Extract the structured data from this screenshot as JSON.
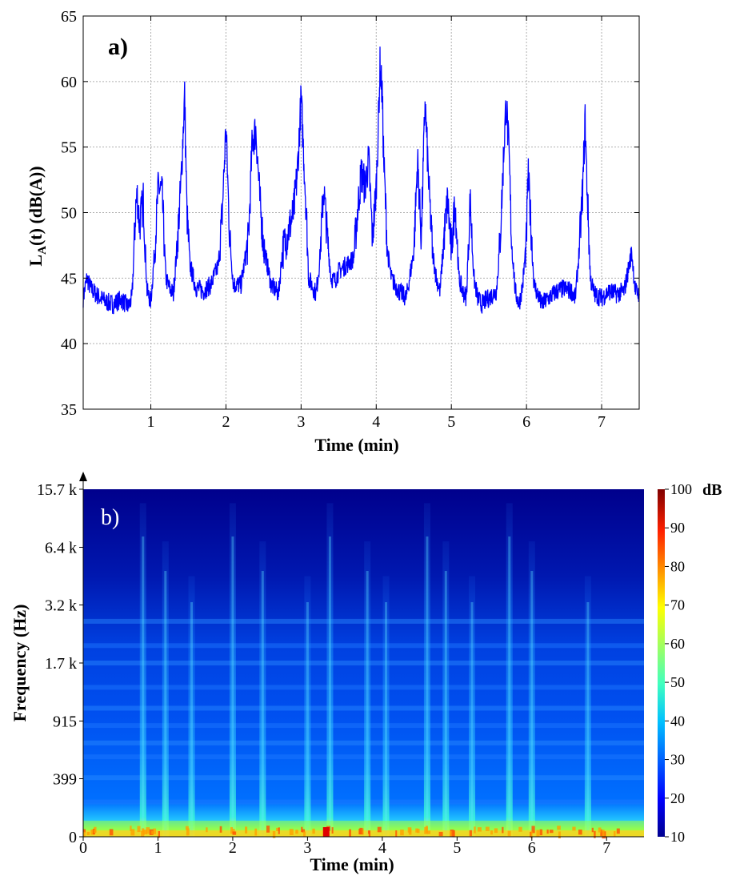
{
  "chart_data": [
    {
      "type": "line",
      "panel_label": "a)",
      "xlabel": "Time (min)",
      "ylabel_main": "L",
      "ylabel_sub": "A",
      "ylabel_rest": "(t) (dB(A))",
      "xlim": [
        0.1,
        7.5
      ],
      "ylim": [
        35,
        65
      ],
      "x_ticks": [
        1,
        2,
        3,
        4,
        5,
        6,
        7
      ],
      "x_tick_labels": [
        "1",
        "2",
        "3",
        "4",
        "5",
        "6",
        "7"
      ],
      "y_ticks": [
        35,
        40,
        45,
        50,
        55,
        60,
        65
      ],
      "y_tick_labels": [
        "35",
        "40",
        "45",
        "50",
        "55",
        "60",
        "65"
      ],
      "grid": true,
      "line_color": "#0000ff",
      "series": [
        {
          "x": [
            0.1,
            0.15,
            0.2,
            0.3,
            0.4,
            0.5,
            0.6,
            0.7,
            0.75,
            0.8,
            0.82,
            0.85,
            0.9,
            0.95,
            1.0,
            1.05,
            1.1,
            1.15,
            1.2,
            1.25,
            1.3,
            1.35,
            1.4,
            1.45,
            1.48,
            1.52,
            1.6,
            1.7,
            1.8,
            1.9,
            1.95,
            2.0,
            2.05,
            2.1,
            2.2,
            2.3,
            2.35,
            2.4,
            2.45,
            2.5,
            2.6,
            2.7,
            2.75,
            2.8,
            2.9,
            2.95,
            3.0,
            3.03,
            3.07,
            3.1,
            3.2,
            3.25,
            3.3,
            3.35,
            3.4,
            3.45,
            3.5,
            3.6,
            3.7,
            3.75,
            3.8,
            3.85,
            3.9,
            3.95,
            4.0,
            4.03,
            4.05,
            4.08,
            4.1,
            4.15,
            4.2,
            4.3,
            4.4,
            4.5,
            4.55,
            4.6,
            4.65,
            4.7,
            4.75,
            4.8,
            4.85,
            4.9,
            4.95,
            5.0,
            5.05,
            5.1,
            5.15,
            5.2,
            5.25,
            5.3,
            5.35,
            5.4,
            5.5,
            5.6,
            5.65,
            5.7,
            5.73,
            5.77,
            5.8,
            5.85,
            5.9,
            5.95,
            6.0,
            6.02,
            6.05,
            6.1,
            6.2,
            6.3,
            6.4,
            6.5,
            6.6,
            6.65,
            6.7,
            6.75,
            6.78,
            6.8,
            6.85,
            6.9,
            7.0,
            7.1,
            7.2,
            7.3,
            7.35,
            7.4,
            7.45,
            7.5
          ],
          "y": [
            43.5,
            45.0,
            44.2,
            43.6,
            43.2,
            43.0,
            43.4,
            42.8,
            43.5,
            50.5,
            51.3,
            49.0,
            51.0,
            44.0,
            43.2,
            47.0,
            52.0,
            51.5,
            45.0,
            44.2,
            43.8,
            47.5,
            52.0,
            59.0,
            50.0,
            46.0,
            44.3,
            44.0,
            44.5,
            46.0,
            50.0,
            56.5,
            48.0,
            44.5,
            44.5,
            48.0,
            55.5,
            56.3,
            51.0,
            47.5,
            44.5,
            43.8,
            47.0,
            48.0,
            50.0,
            53.0,
            58.7,
            55.0,
            50.0,
            45.0,
            43.8,
            46.5,
            52.0,
            48.0,
            45.0,
            44.8,
            45.5,
            46.0,
            46.5,
            50.0,
            53.0,
            52.0,
            54.0,
            48.0,
            52.0,
            57.0,
            61.2,
            59.0,
            54.0,
            47.0,
            45.0,
            44.0,
            43.5,
            47.0,
            54.0,
            48.0,
            58.5,
            52.0,
            47.0,
            45.0,
            44.0,
            48.0,
            51.0,
            47.0,
            51.0,
            45.0,
            44.0,
            43.5,
            51.0,
            45.0,
            43.5,
            43.0,
            43.5,
            44.0,
            48.0,
            55.0,
            58.6,
            54.0,
            48.0,
            44.0,
            43.0,
            44.5,
            48.0,
            53.0,
            50.0,
            44.5,
            43.0,
            43.5,
            44.0,
            44.2,
            44.0,
            43.5,
            47.0,
            52.0,
            57.0,
            53.0,
            45.0,
            43.8,
            43.5,
            44.0,
            43.8,
            44.0,
            45.5,
            47.0,
            44.0,
            43.8
          ]
        }
      ]
    },
    {
      "type": "heatmap",
      "panel_label": "b)",
      "xlabel": "Time (min)",
      "ylabel": "Frequency (Hz)",
      "xlim": [
        0,
        7.5
      ],
      "x_ticks": [
        0,
        1,
        2,
        3,
        4,
        5,
        6,
        7
      ],
      "x_tick_labels": [
        "0",
        "1",
        "2",
        "3",
        "4",
        "5",
        "6",
        "7"
      ],
      "y_tick_labels": [
        "0",
        "399",
        "915",
        "1.7 k",
        "3.2 k",
        "6.4 k",
        "15.7 k"
      ],
      "y_tick_fractions": [
        0.0,
        0.167,
        0.333,
        0.5,
        0.667,
        0.833,
        1.0
      ],
      "colorbar": {
        "label": "dB",
        "range": [
          10,
          100
        ],
        "ticks": [
          10,
          20,
          30,
          40,
          50,
          60,
          70,
          80,
          90,
          100
        ],
        "tick_labels": [
          "10",
          "20",
          "30",
          "40",
          "50",
          "60",
          "70",
          "80",
          "90",
          "100"
        ],
        "colors": [
          "#00008f",
          "#0000ff",
          "#0060ff",
          "#00c0ff",
          "#40ffbf",
          "#a0ff60",
          "#ffff00",
          "#ff9000",
          "#ff2000",
          "#800000"
        ]
      },
      "event_times_min": [
        0.8,
        1.1,
        1.45,
        2.0,
        2.4,
        3.0,
        3.3,
        3.8,
        4.05,
        4.6,
        4.85,
        5.2,
        5.7,
        6.0,
        6.75
      ],
      "band_fractions": [
        0.1,
        0.17,
        0.23,
        0.27,
        0.32,
        0.37,
        0.43,
        0.5,
        0.55,
        0.62
      ]
    }
  ]
}
